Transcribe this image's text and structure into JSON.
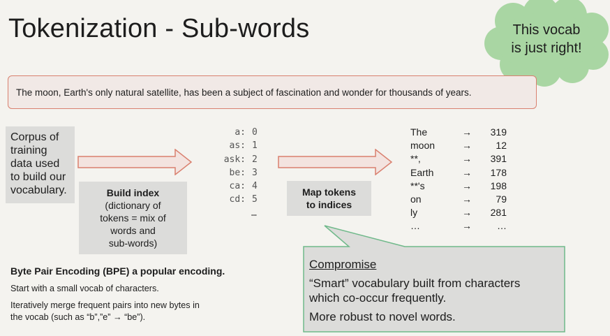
{
  "title": "Tokenization - Sub-words",
  "thought_bubble": {
    "line1": "This vocab",
    "line2": "is just right!"
  },
  "sentence": "The moon, Earth's only natural satellite, has been a subject of fascination and wonder for thousands of years.",
  "corpus": {
    "lines": [
      "Corpus of",
      "training",
      "data used",
      "to build our",
      "vocabulary."
    ]
  },
  "build_index": {
    "heading": "Build index",
    "lines": [
      "(dictionary of",
      "tokens = mix of",
      "words and",
      "sub-words)"
    ]
  },
  "dictionary": {
    "entries": [
      {
        "key": "a:",
        "value": "0"
      },
      {
        "key": "as:",
        "value": "1"
      },
      {
        "key": "ask:",
        "value": "2"
      },
      {
        "key": "be:",
        "value": "3"
      },
      {
        "key": "ca:",
        "value": "4"
      },
      {
        "key": "cd:",
        "value": "5"
      }
    ],
    "ellipsis": "…"
  },
  "map_tokens": {
    "line1": "Map tokens",
    "line2": "to indices"
  },
  "mapping": {
    "rows": [
      {
        "token": "The",
        "arrow": "→",
        "index": "319"
      },
      {
        "token": "moon",
        "arrow": "→",
        "index": "12"
      },
      {
        "token": "**,",
        "arrow": "→",
        "index": "391"
      },
      {
        "token": "Earth",
        "arrow": "→",
        "index": "178"
      },
      {
        "token": "**'s",
        "arrow": "→",
        "index": "198"
      },
      {
        "token": "on",
        "arrow": "→",
        "index": "79"
      },
      {
        "token": "ly",
        "arrow": "→",
        "index": "281"
      },
      {
        "token": "…",
        "arrow": "→",
        "index": "…"
      }
    ]
  },
  "bpe": {
    "heading": "Byte Pair Encoding (BPE) a popular encoding.",
    "line1": "Start with a small vocab of characters.",
    "line2a": "Iteratively merge frequent pairs into new bytes in",
    "line2b": "the vocab (such as “b”,”e” → “be”)."
  },
  "compromise": {
    "title": "Compromise",
    "line1": "“Smart” vocabulary built from characters",
    "line2": "which co-occur frequently.",
    "line3": "More robust to novel words."
  },
  "colors": {
    "background": "#f4f3ef",
    "cloud": "#a9d6a3",
    "sentence_fill": "#f1e9e6",
    "sentence_border": "#d9806f",
    "arrow_fill": "#f3e3df",
    "arrow_stroke": "#d9806f",
    "gray_box": "#dcdcda",
    "callout_fill": "#dcdcda",
    "callout_border": "#6fb98a"
  }
}
